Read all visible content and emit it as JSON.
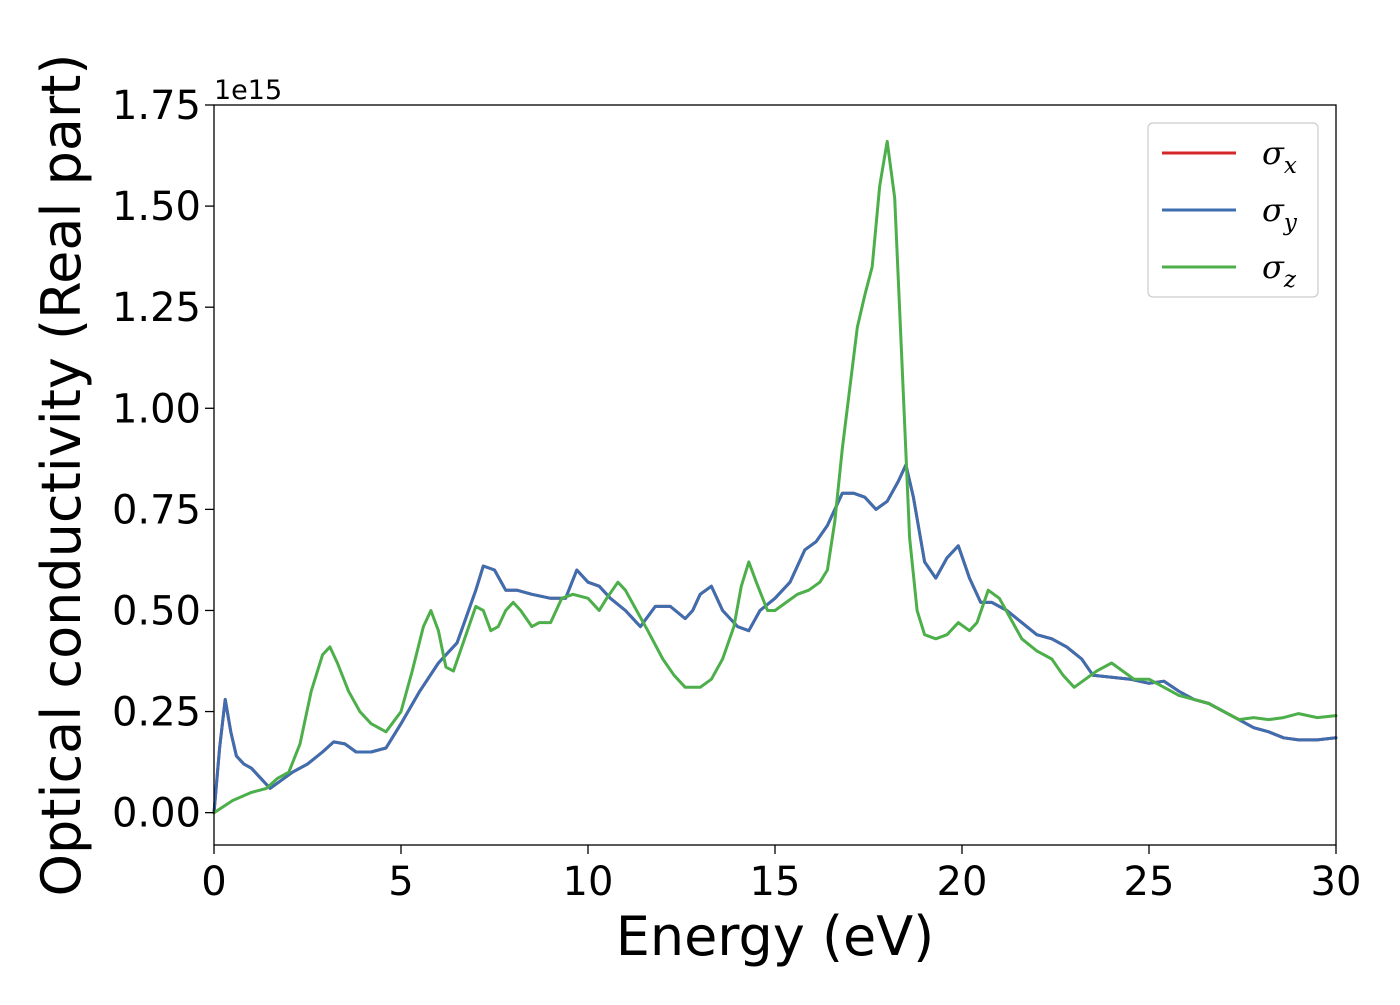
{
  "chart_data": {
    "type": "line",
    "xlabel": "Energy (eV)",
    "ylabel": "Optical conductivity (Real part)",
    "y_offset_text": "1e15",
    "y_scale": 1000000000000000.0,
    "xlim": [
      0,
      30
    ],
    "ylim": [
      -0.08,
      1.75
    ],
    "xticks": [
      0,
      5,
      10,
      15,
      20,
      25,
      30
    ],
    "xtick_labels": [
      "0",
      "5",
      "10",
      "15",
      "20",
      "25",
      "30"
    ],
    "yticks": [
      0.0,
      0.25,
      0.5,
      0.75,
      1.0,
      1.25,
      1.5,
      1.75
    ],
    "ytick_labels": [
      "0.00",
      "0.25",
      "0.50",
      "0.75",
      "1.00",
      "1.25",
      "1.50",
      "1.75"
    ],
    "grid": false,
    "legend_position": "top-right",
    "series": [
      {
        "name": "σx",
        "base": "σ",
        "sub": "x",
        "color": "#d62728",
        "x": [
          0,
          0.15,
          0.3,
          0.45,
          0.6,
          0.8,
          1.0,
          1.2,
          1.5,
          1.8,
          2.1,
          2.5,
          2.9,
          3.2,
          3.5,
          3.8,
          4.2,
          4.6,
          5.0,
          5.5,
          6.0,
          6.5,
          7.0,
          7.2,
          7.5,
          7.8,
          8.1,
          8.5,
          9.0,
          9.4,
          9.7,
          10.0,
          10.3,
          10.6,
          11.0,
          11.4,
          11.8,
          12.2,
          12.6,
          12.8,
          13.0,
          13.3,
          13.6,
          14.0,
          14.3,
          14.6,
          15.0,
          15.4,
          15.8,
          16.1,
          16.4,
          16.8,
          17.1,
          17.4,
          17.7,
          18.0,
          18.3,
          18.5,
          18.7,
          19.0,
          19.3,
          19.6,
          19.9,
          20.2,
          20.5,
          20.8,
          21.2,
          21.6,
          22.0,
          22.4,
          22.8,
          23.2,
          23.5,
          24.0,
          24.5,
          25.0,
          25.4,
          25.8,
          26.2,
          26.6,
          27.0,
          27.4,
          27.8,
          28.2,
          28.6,
          29.0,
          29.5,
          30.0
        ],
        "y": [
          0.0,
          0.16,
          0.28,
          0.2,
          0.14,
          0.12,
          0.11,
          0.09,
          0.06,
          0.08,
          0.1,
          0.12,
          0.15,
          0.175,
          0.17,
          0.15,
          0.15,
          0.16,
          0.22,
          0.3,
          0.37,
          0.42,
          0.55,
          0.61,
          0.6,
          0.55,
          0.55,
          0.54,
          0.53,
          0.53,
          0.6,
          0.57,
          0.56,
          0.53,
          0.5,
          0.46,
          0.51,
          0.51,
          0.48,
          0.5,
          0.54,
          0.56,
          0.5,
          0.46,
          0.45,
          0.5,
          0.53,
          0.57,
          0.65,
          0.67,
          0.71,
          0.79,
          0.79,
          0.78,
          0.75,
          0.77,
          0.82,
          0.86,
          0.78,
          0.62,
          0.58,
          0.63,
          0.66,
          0.58,
          0.52,
          0.52,
          0.5,
          0.47,
          0.44,
          0.43,
          0.41,
          0.38,
          0.34,
          0.335,
          0.33,
          0.32,
          0.325,
          0.3,
          0.28,
          0.27,
          0.25,
          0.23,
          0.21,
          0.2,
          0.185,
          0.18,
          0.18,
          0.185
        ]
      },
      {
        "name": "σy",
        "base": "σ",
        "sub": "y",
        "color": "#3d6eb0",
        "x": [
          0,
          0.15,
          0.3,
          0.45,
          0.6,
          0.8,
          1.0,
          1.2,
          1.5,
          1.8,
          2.1,
          2.5,
          2.9,
          3.2,
          3.5,
          3.8,
          4.2,
          4.6,
          5.0,
          5.5,
          6.0,
          6.5,
          7.0,
          7.2,
          7.5,
          7.8,
          8.1,
          8.5,
          9.0,
          9.4,
          9.7,
          10.0,
          10.3,
          10.6,
          11.0,
          11.4,
          11.8,
          12.2,
          12.6,
          12.8,
          13.0,
          13.3,
          13.6,
          14.0,
          14.3,
          14.6,
          15.0,
          15.4,
          15.8,
          16.1,
          16.4,
          16.8,
          17.1,
          17.4,
          17.7,
          18.0,
          18.3,
          18.5,
          18.7,
          19.0,
          19.3,
          19.6,
          19.9,
          20.2,
          20.5,
          20.8,
          21.2,
          21.6,
          22.0,
          22.4,
          22.8,
          23.2,
          23.5,
          24.0,
          24.5,
          25.0,
          25.4,
          25.8,
          26.2,
          26.6,
          27.0,
          27.4,
          27.8,
          28.2,
          28.6,
          29.0,
          29.5,
          30.0
        ],
        "y": [
          0.0,
          0.16,
          0.28,
          0.2,
          0.14,
          0.12,
          0.11,
          0.09,
          0.06,
          0.08,
          0.1,
          0.12,
          0.15,
          0.175,
          0.17,
          0.15,
          0.15,
          0.16,
          0.22,
          0.3,
          0.37,
          0.42,
          0.55,
          0.61,
          0.6,
          0.55,
          0.55,
          0.54,
          0.53,
          0.53,
          0.6,
          0.57,
          0.56,
          0.53,
          0.5,
          0.46,
          0.51,
          0.51,
          0.48,
          0.5,
          0.54,
          0.56,
          0.5,
          0.46,
          0.45,
          0.5,
          0.53,
          0.57,
          0.65,
          0.67,
          0.71,
          0.79,
          0.79,
          0.78,
          0.75,
          0.77,
          0.82,
          0.86,
          0.78,
          0.62,
          0.58,
          0.63,
          0.66,
          0.58,
          0.52,
          0.52,
          0.5,
          0.47,
          0.44,
          0.43,
          0.41,
          0.38,
          0.34,
          0.335,
          0.33,
          0.32,
          0.325,
          0.3,
          0.28,
          0.27,
          0.25,
          0.23,
          0.21,
          0.2,
          0.185,
          0.18,
          0.18,
          0.185
        ]
      },
      {
        "name": "σz",
        "base": "σ",
        "sub": "z",
        "color": "#4daf4a",
        "x": [
          0,
          0.5,
          1.0,
          1.4,
          1.7,
          2.0,
          2.3,
          2.6,
          2.9,
          3.1,
          3.3,
          3.6,
          3.9,
          4.2,
          4.6,
          5.0,
          5.3,
          5.6,
          5.8,
          6.0,
          6.2,
          6.4,
          6.7,
          7.0,
          7.2,
          7.4,
          7.6,
          7.8,
          8.0,
          8.2,
          8.5,
          8.7,
          9.0,
          9.3,
          9.6,
          10.0,
          10.3,
          10.5,
          10.8,
          11.0,
          11.3,
          11.6,
          12.0,
          12.3,
          12.6,
          13.0,
          13.3,
          13.6,
          13.9,
          14.1,
          14.3,
          14.5,
          14.8,
          15.0,
          15.3,
          15.6,
          15.9,
          16.2,
          16.4,
          16.6,
          16.8,
          17.0,
          17.2,
          17.4,
          17.6,
          17.8,
          18.0,
          18.2,
          18.4,
          18.6,
          18.8,
          19.0,
          19.3,
          19.6,
          19.9,
          20.2,
          20.4,
          20.7,
          21.0,
          21.3,
          21.6,
          22.0,
          22.4,
          22.7,
          23.0,
          23.3,
          23.6,
          24.0,
          24.3,
          24.6,
          25.0,
          25.4,
          25.8,
          26.2,
          26.6,
          27.0,
          27.4,
          27.8,
          28.2,
          28.6,
          29.0,
          29.5,
          30.0
        ],
        "y": [
          0.0,
          0.03,
          0.05,
          0.06,
          0.085,
          0.1,
          0.17,
          0.3,
          0.39,
          0.41,
          0.37,
          0.3,
          0.25,
          0.22,
          0.2,
          0.25,
          0.35,
          0.46,
          0.5,
          0.45,
          0.36,
          0.35,
          0.43,
          0.51,
          0.5,
          0.45,
          0.46,
          0.5,
          0.52,
          0.5,
          0.46,
          0.47,
          0.47,
          0.53,
          0.54,
          0.53,
          0.5,
          0.53,
          0.57,
          0.55,
          0.5,
          0.45,
          0.38,
          0.34,
          0.31,
          0.31,
          0.33,
          0.38,
          0.46,
          0.56,
          0.62,
          0.57,
          0.5,
          0.5,
          0.52,
          0.54,
          0.55,
          0.57,
          0.6,
          0.72,
          0.9,
          1.05,
          1.2,
          1.28,
          1.35,
          1.55,
          1.66,
          1.52,
          1.1,
          0.68,
          0.5,
          0.44,
          0.43,
          0.44,
          0.47,
          0.45,
          0.47,
          0.55,
          0.53,
          0.48,
          0.43,
          0.4,
          0.38,
          0.34,
          0.31,
          0.33,
          0.35,
          0.37,
          0.35,
          0.33,
          0.33,
          0.31,
          0.29,
          0.28,
          0.27,
          0.25,
          0.23,
          0.235,
          0.23,
          0.235,
          0.245,
          0.235,
          0.24
        ]
      }
    ]
  }
}
